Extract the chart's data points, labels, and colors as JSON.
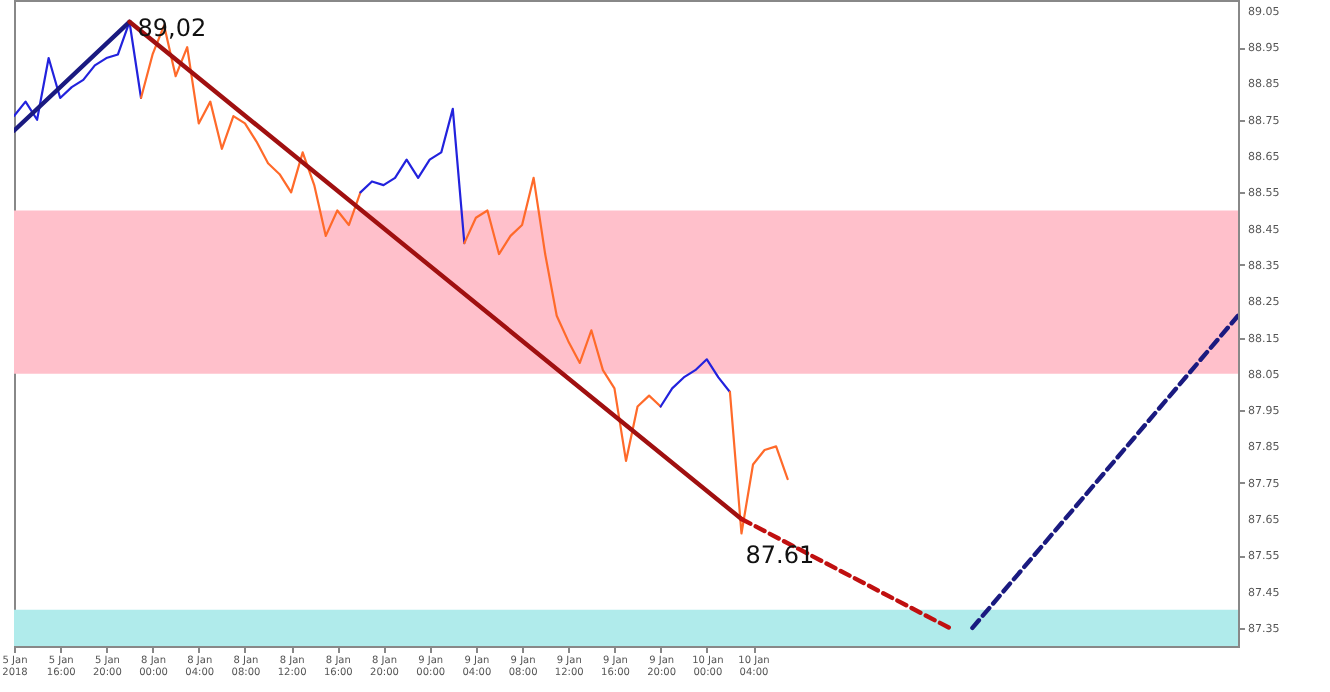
{
  "chart_data": {
    "type": "line",
    "categories": [
      "5 Jan 2018",
      null,
      null,
      null,
      "5 Jan 16:00",
      null,
      null,
      null,
      "5 Jan 20:00",
      null,
      null,
      null,
      "8 Jan 00:00",
      null,
      null,
      null,
      "8 Jan 04:00",
      null,
      null,
      null,
      "8 Jan 08:00",
      null,
      null,
      null,
      "8 Jan 12:00",
      null,
      null,
      null,
      "8 Jan 16:00",
      null,
      null,
      null,
      "8 Jan 20:00",
      null,
      null,
      null,
      "9 Jan 00:00",
      null,
      null,
      null,
      "9 Jan 04:00",
      null,
      null,
      null,
      "9 Jan 08:00",
      null,
      null,
      null,
      "9 Jan 12:00",
      null,
      null,
      null,
      "9 Jan 16:00",
      null,
      null,
      null,
      "9 Jan 20:00",
      null,
      null,
      null,
      "10 Jan 00:00",
      null,
      null,
      null,
      "10 Jan 04:00",
      null,
      null,
      null,
      null,
      null,
      null,
      null,
      null,
      null,
      null,
      null,
      null,
      null,
      null,
      null,
      null,
      null,
      null,
      null,
      null,
      null,
      null,
      null,
      null,
      null,
      null,
      null,
      null,
      null,
      null,
      null,
      null,
      null,
      null,
      null,
      null,
      null,
      null,
      null,
      null,
      null,
      null
    ],
    "ylim": [
      87.3,
      89.08
    ],
    "yticks": [
      89.05,
      88.95,
      88.85,
      88.75,
      88.65,
      88.55,
      88.45,
      88.35,
      88.25,
      88.15,
      88.05,
      87.95,
      87.85,
      87.75,
      87.65,
      87.55,
      87.45,
      87.35
    ],
    "bands": [
      {
        "axis": "y",
        "from": 88.05,
        "to": 88.5,
        "color": "#ffc0cb"
      },
      {
        "axis": "y",
        "from": 87.3,
        "to": 87.4,
        "color": "#b0ebeb"
      }
    ],
    "series": [
      {
        "color": "#2222dd",
        "values": [
          88.76,
          88.8,
          88.75,
          88.92,
          88.81,
          88.84,
          88.86,
          88.9,
          88.92,
          88.93,
          89.02,
          88.81,
          null,
          null,
          null,
          null,
          null,
          null,
          null,
          null,
          null,
          null,
          null,
          null,
          null,
          null,
          null,
          null,
          null,
          null,
          null,
          null,
          null,
          null,
          null,
          null,
          null,
          null,
          null,
          null,
          null,
          null,
          null,
          null,
          null,
          null,
          null,
          null,
          null,
          null,
          null,
          null,
          null,
          null,
          null,
          null,
          null,
          null,
          null,
          null,
          null,
          null,
          null,
          null,
          null,
          null,
          null,
          null,
          null,
          null,
          null,
          null,
          null,
          null,
          null,
          null,
          null,
          null,
          null,
          null,
          null,
          null,
          null,
          null,
          null,
          null,
          null,
          null,
          null,
          null,
          null,
          null,
          null,
          null,
          null,
          null,
          null,
          null,
          null,
          null,
          null,
          null,
          null,
          null,
          null,
          null,
          null
        ]
      },
      {
        "color": "#ff6a2a",
        "values": [
          null,
          null,
          null,
          null,
          null,
          null,
          null,
          null,
          null,
          null,
          null,
          88.81,
          88.93,
          89.01,
          88.87,
          88.95,
          88.74,
          88.8,
          88.67,
          88.76,
          88.74,
          88.69,
          88.63,
          88.6,
          88.55,
          88.66,
          88.57,
          88.43,
          88.5,
          88.46,
          88.55,
          null,
          null,
          null,
          null,
          null,
          null,
          null,
          null,
          null,
          null,
          null,
          null,
          null,
          null,
          null,
          null,
          null,
          null,
          null,
          null,
          null,
          null,
          null,
          null,
          null,
          null,
          null,
          null,
          null,
          null,
          null,
          null,
          null,
          null,
          null,
          null,
          null,
          null,
          null,
          null,
          null,
          null,
          null,
          null,
          null,
          null,
          null,
          null,
          null,
          null,
          null,
          null,
          null,
          null,
          null,
          null,
          null,
          null,
          null,
          null,
          null,
          null,
          null,
          null,
          null,
          null,
          null,
          null,
          null,
          null,
          null,
          null,
          null,
          null,
          null,
          null
        ]
      },
      {
        "color": "#2222dd",
        "values": [
          null,
          null,
          null,
          null,
          null,
          null,
          null,
          null,
          null,
          null,
          null,
          null,
          null,
          null,
          null,
          null,
          null,
          null,
          null,
          null,
          null,
          null,
          null,
          null,
          null,
          null,
          null,
          null,
          null,
          null,
          88.55,
          88.58,
          88.57,
          88.59,
          88.64,
          88.59,
          88.64,
          88.66,
          88.78,
          88.41,
          null,
          null,
          null,
          null,
          null,
          null,
          null,
          null,
          null,
          null,
          null,
          null,
          null,
          null,
          null,
          null,
          null,
          null,
          null,
          null,
          null,
          null,
          null,
          null,
          null,
          null,
          null,
          null,
          null,
          null,
          null,
          null,
          null,
          null,
          null,
          null,
          null,
          null,
          null,
          null,
          null,
          null,
          null,
          null,
          null,
          null,
          null,
          null,
          null,
          null,
          null,
          null,
          null,
          null,
          null,
          null,
          null,
          null,
          null,
          null,
          null,
          null,
          null,
          null,
          null,
          null,
          null
        ]
      },
      {
        "color": "#ff6a2a",
        "values": [
          null,
          null,
          null,
          null,
          null,
          null,
          null,
          null,
          null,
          null,
          null,
          null,
          null,
          null,
          null,
          null,
          null,
          null,
          null,
          null,
          null,
          null,
          null,
          null,
          null,
          null,
          null,
          null,
          null,
          null,
          null,
          null,
          null,
          null,
          null,
          null,
          null,
          null,
          null,
          88.41,
          88.48,
          88.5,
          88.38,
          88.43,
          88.46,
          88.59,
          88.38,
          88.21,
          88.14,
          88.08,
          88.17,
          88.06,
          88.01,
          87.81,
          87.96,
          87.99,
          87.96,
          null,
          null,
          null,
          null,
          null,
          null,
          null,
          null,
          null,
          null,
          null,
          null,
          null,
          null,
          null,
          null,
          null,
          null,
          null,
          null,
          null,
          null,
          null,
          null,
          null,
          null,
          null,
          null,
          null,
          null,
          null,
          null,
          null,
          null,
          null,
          null,
          null,
          null,
          null,
          null,
          null,
          null,
          null,
          null,
          null,
          null,
          null,
          null,
          null,
          null
        ]
      },
      {
        "color": "#2222dd",
        "values": [
          null,
          null,
          null,
          null,
          null,
          null,
          null,
          null,
          null,
          null,
          null,
          null,
          null,
          null,
          null,
          null,
          null,
          null,
          null,
          null,
          null,
          null,
          null,
          null,
          null,
          null,
          null,
          null,
          null,
          null,
          null,
          null,
          null,
          null,
          null,
          null,
          null,
          null,
          null,
          null,
          null,
          null,
          null,
          null,
          null,
          null,
          null,
          null,
          null,
          null,
          null,
          null,
          null,
          null,
          null,
          null,
          87.96,
          88.01,
          88.04,
          88.06,
          88.09,
          88.04,
          88.0,
          null,
          null,
          null,
          null,
          null,
          null,
          null,
          null,
          null,
          null,
          null,
          null,
          null,
          null,
          null,
          null,
          null,
          null,
          null,
          null,
          null,
          null,
          null,
          null,
          null,
          null,
          null,
          null,
          null,
          null,
          null,
          null,
          null,
          null,
          null,
          null,
          null,
          null,
          null,
          null,
          null,
          null,
          null,
          null
        ]
      },
      {
        "color": "#ff6a2a",
        "values": [
          null,
          null,
          null,
          null,
          null,
          null,
          null,
          null,
          null,
          null,
          null,
          null,
          null,
          null,
          null,
          null,
          null,
          null,
          null,
          null,
          null,
          null,
          null,
          null,
          null,
          null,
          null,
          null,
          null,
          null,
          null,
          null,
          null,
          null,
          null,
          null,
          null,
          null,
          null,
          null,
          null,
          null,
          null,
          null,
          null,
          null,
          null,
          null,
          null,
          null,
          null,
          null,
          null,
          null,
          null,
          null,
          null,
          null,
          null,
          null,
          null,
          null,
          88.0,
          87.61,
          87.8,
          87.84,
          87.85,
          87.76,
          null,
          null,
          null,
          null,
          null,
          null,
          null,
          null,
          null,
          null,
          null,
          null,
          null,
          null,
          null,
          null,
          null,
          null,
          null,
          null,
          null,
          null,
          null,
          null,
          null,
          null,
          null,
          null,
          null,
          null,
          null,
          null,
          null,
          null,
          null,
          null,
          null,
          null,
          null
        ]
      },
      {
        "color": "#1a1a80",
        "line_style": "solid",
        "values": [
          88.72,
          null,
          null,
          null,
          null,
          null,
          null,
          null,
          null,
          null,
          89.02,
          null,
          null,
          null,
          null,
          null,
          null,
          null,
          null,
          null,
          null,
          null,
          null,
          null,
          null,
          null,
          null,
          null,
          null,
          null,
          null,
          null,
          null,
          null,
          null,
          null,
          null,
          null,
          null,
          null,
          null,
          null,
          null,
          null,
          null,
          null,
          null,
          null,
          null,
          null,
          null,
          null,
          null,
          null,
          null,
          null,
          null,
          null,
          null,
          null,
          null,
          null,
          null,
          null,
          null,
          null,
          null,
          null,
          null,
          null,
          null,
          null,
          null,
          null,
          null,
          null,
          null,
          null,
          null,
          null,
          null,
          null,
          null,
          null,
          null,
          null,
          null,
          null,
          null,
          null,
          null,
          null,
          null,
          null,
          null,
          null,
          null,
          null,
          null,
          null,
          null,
          null,
          null,
          null,
          null,
          null,
          null
        ]
      },
      {
        "color": "#a01010",
        "line_style": "solid",
        "values": [
          null,
          null,
          null,
          null,
          null,
          null,
          null,
          null,
          null,
          null,
          89.02,
          null,
          null,
          null,
          null,
          null,
          null,
          null,
          null,
          null,
          null,
          null,
          null,
          null,
          null,
          null,
          null,
          null,
          null,
          null,
          null,
          null,
          null,
          null,
          null,
          null,
          null,
          null,
          null,
          null,
          null,
          null,
          null,
          null,
          null,
          null,
          null,
          null,
          null,
          null,
          null,
          null,
          null,
          null,
          null,
          null,
          null,
          null,
          null,
          null,
          null,
          null,
          null,
          87.65,
          null,
          null,
          null,
          null,
          null,
          null,
          null,
          null,
          null,
          null,
          null,
          null,
          null,
          null,
          null,
          null,
          null,
          null,
          null,
          null,
          null,
          null,
          null,
          null,
          null,
          null,
          null,
          null,
          null,
          null,
          null,
          null,
          null,
          null,
          null,
          null,
          null,
          null,
          null,
          null,
          null,
          null,
          null
        ]
      },
      {
        "color": "#c01010",
        "line_style": "dashed",
        "values": [
          null,
          null,
          null,
          null,
          null,
          null,
          null,
          null,
          null,
          null,
          null,
          null,
          null,
          null,
          null,
          null,
          null,
          null,
          null,
          null,
          null,
          null,
          null,
          null,
          null,
          null,
          null,
          null,
          null,
          null,
          null,
          null,
          null,
          null,
          null,
          null,
          null,
          null,
          null,
          null,
          null,
          null,
          null,
          null,
          null,
          null,
          null,
          null,
          null,
          null,
          null,
          null,
          null,
          null,
          null,
          null,
          null,
          null,
          null,
          null,
          null,
          null,
          null,
          87.65,
          null,
          null,
          null,
          null,
          null,
          null,
          null,
          null,
          null,
          null,
          null,
          null,
          null,
          null,
          null,
          null,
          null,
          87.35,
          null,
          null,
          null,
          null,
          null,
          null,
          null,
          null,
          null,
          null,
          null,
          null,
          null,
          null,
          null,
          null,
          null,
          null,
          null,
          null,
          null,
          null,
          null,
          null,
          null
        ]
      },
      {
        "color": "#1a1a80",
        "line_style": "dashed",
        "values": [
          null,
          null,
          null,
          null,
          null,
          null,
          null,
          null,
          null,
          null,
          null,
          null,
          null,
          null,
          null,
          null,
          null,
          null,
          null,
          null,
          null,
          null,
          null,
          null,
          null,
          null,
          null,
          null,
          null,
          null,
          null,
          null,
          null,
          null,
          null,
          null,
          null,
          null,
          null,
          null,
          null,
          null,
          null,
          null,
          null,
          null,
          null,
          null,
          null,
          null,
          null,
          null,
          null,
          null,
          null,
          null,
          null,
          null,
          null,
          null,
          null,
          null,
          null,
          null,
          null,
          null,
          null,
          null,
          null,
          null,
          null,
          null,
          null,
          null,
          null,
          null,
          null,
          null,
          null,
          null,
          null,
          null,
          null,
          87.35,
          null,
          null,
          null,
          null,
          null,
          null,
          null,
          null,
          null,
          null,
          null,
          null,
          null,
          null,
          null,
          null,
          null,
          null,
          null,
          null,
          null,
          null,
          88.21
        ]
      }
    ],
    "annotations": [
      {
        "text": "89,02",
        "y": 89.02
      },
      {
        "text": "87.61",
        "y": 87.61
      }
    ]
  }
}
